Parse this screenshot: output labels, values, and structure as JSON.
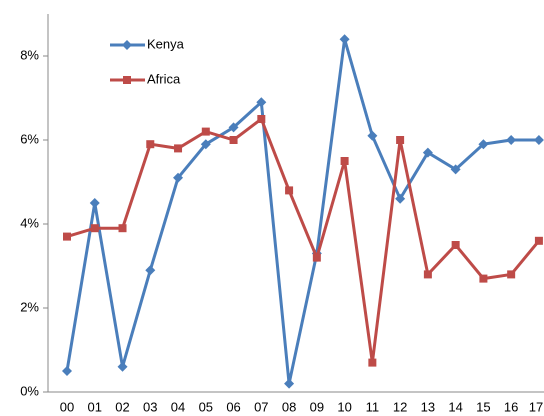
{
  "chart_data": {
    "type": "line",
    "categories": [
      "00",
      "01",
      "02",
      "03",
      "04",
      "05",
      "06",
      "07",
      "08",
      "09",
      "10",
      "11",
      "12",
      "13",
      "14",
      "15",
      "16",
      "17"
    ],
    "series": [
      {
        "name": "Kenya",
        "color": "#4a7ebb",
        "marker": "diamond",
        "values": [
          0.5,
          4.5,
          0.6,
          2.9,
          5.1,
          5.9,
          6.3,
          6.9,
          0.2,
          3.3,
          8.4,
          6.1,
          4.6,
          5.7,
          5.3,
          5.9,
          6.0,
          6.0
        ]
      },
      {
        "name": "Africa",
        "color": "#be4b48",
        "marker": "square",
        "values": [
          3.7,
          3.9,
          3.9,
          5.9,
          5.8,
          6.2,
          6.0,
          6.5,
          4.8,
          3.2,
          5.5,
          0.7,
          6.0,
          2.8,
          3.5,
          2.7,
          2.8,
          3.6
        ]
      }
    ],
    "ylim": [
      0,
      9
    ],
    "yticks": [
      {
        "value": 0,
        "label": "0%"
      },
      {
        "value": 2,
        "label": "2%"
      },
      {
        "value": 4,
        "label": "4%"
      },
      {
        "value": 6,
        "label": "6%"
      },
      {
        "value": 8,
        "label": "8%"
      }
    ],
    "grid": false
  }
}
